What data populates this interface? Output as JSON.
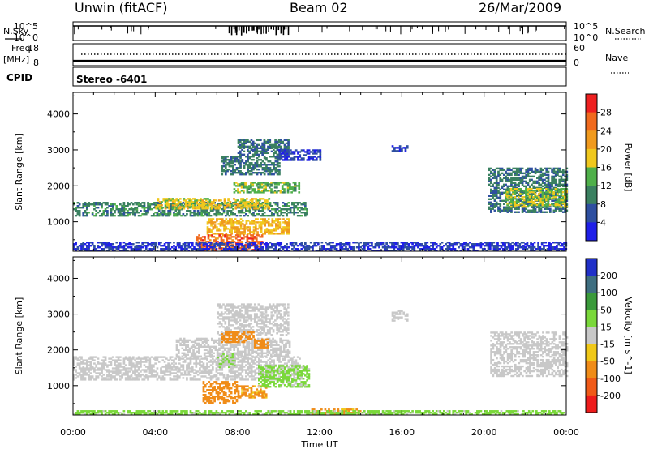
{
  "header": {
    "station": "Unwin (fitACF)",
    "beam": "Beam 02",
    "date": "26/Mar/2009"
  },
  "strip_labels": {
    "nsky": "N.Sky",
    "nsky_ticks": [
      "10^5",
      "10^0"
    ],
    "nsearch": "N.Search",
    "nsearch_ticks": [
      "10^5",
      "10^0"
    ],
    "freq": "Freq.",
    "freq_unit": "[MHz]",
    "freq_ticks": [
      "18",
      "8"
    ],
    "nave": "Nave",
    "nave_ticks": [
      "60",
      "0"
    ],
    "cpid": "CPID",
    "cpid_value": "Stereo -6401"
  },
  "colors": {
    "power": [
      "#1f1fe8",
      "#2e4fa0",
      "#3a8060",
      "#4fb04a",
      "#f0c81e",
      "#f09a1e",
      "#f06a1e",
      "#ee2020"
    ],
    "velocity": [
      "#2030c8",
      "#3e6e80",
      "#3a9a3a",
      "#7ad83a",
      "#c8c8c8",
      "#f0c818",
      "#f08c18",
      "#f05a18",
      "#ee1c1c"
    ],
    "ground_scatter": "#8c8c8c"
  },
  "chart_data": [
    {
      "type": "heatmap",
      "panel": "power",
      "xlabel": "Time UT",
      "ylabel": "Slant Range [km]",
      "x_range_hours": [
        0,
        24
      ],
      "x_tick_labels": [
        "00:00",
        "04:00",
        "08:00",
        "12:00",
        "16:00",
        "20:00",
        "00:00"
      ],
      "ylim": [
        180,
        4600
      ],
      "y_tick_labels": [
        "1000",
        "2000",
        "3000",
        "4000"
      ],
      "colorbar_label": "Power [dB]",
      "colorbar_ticks": [
        "4",
        "8",
        "12",
        "16",
        "20",
        "24",
        "28"
      ],
      "colorbar_levels": [
        0,
        4,
        8,
        12,
        16,
        20,
        24,
        28,
        32
      ],
      "regions": [
        {
          "t_start": 0.0,
          "t_end": 11.4,
          "range_start": 1150,
          "range_end": 1550,
          "value": 10
        },
        {
          "t_start": 4.0,
          "t_end": 9.5,
          "range_start": 1350,
          "range_end": 1650,
          "value": 18
        },
        {
          "t_start": 7.8,
          "t_end": 11.0,
          "range_start": 1800,
          "range_end": 2100,
          "value": 14
        },
        {
          "t_start": 7.2,
          "t_end": 10.0,
          "range_start": 2300,
          "range_end": 2800,
          "value": 9
        },
        {
          "t_start": 8.0,
          "t_end": 10.5,
          "range_start": 2850,
          "range_end": 3300,
          "value": 8
        },
        {
          "t_start": 6.5,
          "t_end": 10.5,
          "range_start": 650,
          "range_end": 1100,
          "value": 20
        },
        {
          "t_start": 6.0,
          "t_end": 9.2,
          "range_start": 200,
          "range_end": 650,
          "value": 26
        },
        {
          "t_start": 20.2,
          "t_end": 24.0,
          "range_start": 1250,
          "range_end": 2500,
          "value": 9
        },
        {
          "t_start": 21.0,
          "t_end": 24.0,
          "range_start": 1400,
          "range_end": 1900,
          "value": 16
        },
        {
          "t_start": 10.0,
          "t_end": 12.0,
          "range_start": 2700,
          "range_end": 3000,
          "value": 5
        },
        {
          "t_start": 15.5,
          "t_end": 16.3,
          "range_start": 2950,
          "range_end": 3100,
          "value": 5
        },
        {
          "t_start": 0.0,
          "t_end": 24.0,
          "range_start": 180,
          "range_end": 420,
          "value": 4
        }
      ]
    },
    {
      "type": "heatmap",
      "panel": "velocity",
      "xlabel": "Time UT",
      "ylabel": "Slant Range [km]",
      "x_range_hours": [
        0,
        24
      ],
      "x_tick_labels": [
        "00:00",
        "04:00",
        "08:00",
        "12:00",
        "16:00",
        "20:00",
        "00:00"
      ],
      "ylim": [
        180,
        4600
      ],
      "y_tick_labels": [
        "1000",
        "2000",
        "3000",
        "4000"
      ],
      "colorbar_label": "Velocity [m s^-1]",
      "colorbar_ticks": [
        "200",
        "100",
        "50",
        "15",
        "-15",
        "-50",
        "-100",
        "-200"
      ],
      "colorbar_levels": [
        250,
        200,
        100,
        50,
        15,
        -15,
        -50,
        -100,
        -200,
        -250
      ],
      "ground_scatter_regions": [
        {
          "t_start": 0.0,
          "t_end": 11.0,
          "range_start": 1150,
          "range_end": 1800
        },
        {
          "t_start": 5.0,
          "t_end": 10.5,
          "range_start": 1800,
          "range_end": 2300
        },
        {
          "t_start": 7.0,
          "t_end": 10.5,
          "range_start": 2400,
          "range_end": 3300
        },
        {
          "t_start": 15.5,
          "t_end": 16.3,
          "range_start": 2800,
          "range_end": 3100
        },
        {
          "t_start": 20.3,
          "t_end": 24.0,
          "range_start": 1250,
          "range_end": 2500
        }
      ],
      "regions": [
        {
          "t_start": 6.3,
          "t_end": 8.0,
          "range_start": 500,
          "range_end": 1100,
          "value": -80
        },
        {
          "t_start": 8.0,
          "t_end": 9.4,
          "range_start": 650,
          "range_end": 1000,
          "value": -60
        },
        {
          "t_start": 9.0,
          "t_end": 11.5,
          "range_start": 950,
          "range_end": 1550,
          "value": 30
        },
        {
          "t_start": 7.2,
          "t_end": 8.8,
          "range_start": 2200,
          "range_end": 2500,
          "value": -80
        },
        {
          "t_start": 8.8,
          "t_end": 9.5,
          "range_start": 2050,
          "range_end": 2300,
          "value": -70
        },
        {
          "t_start": 7.0,
          "t_end": 8.0,
          "range_start": 1500,
          "range_end": 1900,
          "value": 10
        },
        {
          "t_start": 11.5,
          "t_end": 14.0,
          "range_start": 180,
          "range_end": 350,
          "value": -60
        },
        {
          "t_start": 0.0,
          "t_end": 24.0,
          "range_start": 180,
          "range_end": 300,
          "value": 30
        }
      ]
    }
  ]
}
